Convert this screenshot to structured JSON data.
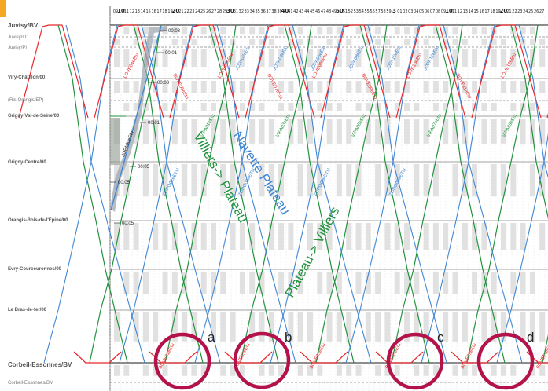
{
  "stations": [
    {
      "name": "Juvisy/BV",
      "kind": "major"
    },
    {
      "name": "Juvisy/LO",
      "kind": "minor"
    },
    {
      "name": "Juvisy/PI",
      "kind": "minor"
    },
    {
      "name": "Viry-Châtillon/00",
      "kind": "normal"
    },
    {
      "name": "(Ris-Orangis/EP)",
      "kind": "minor"
    },
    {
      "name": "Grigny-Val-de-Seine/00",
      "kind": "normal"
    },
    {
      "name": "Grigny-Centre/00",
      "kind": "normal"
    },
    {
      "name": "Orangis-Bois-de-l'Épine/00",
      "kind": "normal"
    },
    {
      "name": "Evry-Courcouronnes/00",
      "kind": "normal"
    },
    {
      "name": "Le Bras-de-fer/00",
      "kind": "normal"
    },
    {
      "name": "Corbeil-Essonnes/BV",
      "kind": "major"
    },
    {
      "name": "Corbeil-Essonnes/BM",
      "kind": "minor"
    }
  ],
  "ticks": [
    "09",
    "10",
    "11",
    "12",
    "13",
    "14",
    "15",
    "16",
    "17",
    "18",
    "19",
    "20",
    "21",
    "22",
    "23",
    "24",
    "25",
    "26",
    "27",
    "28",
    "29",
    "30",
    "31",
    "32",
    "33",
    "34",
    "35",
    "36",
    "37",
    "38",
    "39",
    "40",
    "41",
    "42",
    "43",
    "44",
    "45",
    "46",
    "47",
    "48",
    "49",
    "50",
    "51",
    "52",
    "53",
    "54",
    "55",
    "56",
    "57",
    "58",
    "59",
    "3",
    "01",
    "02",
    "03",
    "04",
    "05",
    "06",
    "07",
    "08",
    "09",
    "10",
    "11",
    "12",
    "13",
    "14",
    "15",
    "16",
    "17",
    "18",
    "19",
    "20",
    "21",
    "22",
    "23",
    "24",
    "25",
    "26",
    "27",
    "28"
  ],
  "annotations": {
    "villiers_plateau": "Villiers-> Plateau",
    "navette_plateau": "Navette Plateau",
    "plateau_villiers": "Plateau-> Villiers"
  },
  "markers": [
    "a",
    "b",
    "c",
    "d"
  ],
  "time_labels": [
    "00:03",
    "00:01",
    "00:08",
    "00:01",
    "00:05",
    "00:05",
    "00:05"
  ],
  "train_labels": {
    "red": [
      "LOVE04eEtu",
      "BOVE05eEtu",
      "LOVE06eEtu",
      "BOVE07eEtu",
      "LOVE08eEtu",
      "BOVE09eEtu",
      "LOVE10eEtu",
      "BOVE11eEtu",
      "LOVE12eEtu"
    ],
    "green": [
      "VIPA01eEtu",
      "VIPA03eEtu",
      "VIPA05eEtu",
      "VIPA07eEtu",
      "VIPA09eEtu"
    ],
    "blue": [
      "JOPA02eEtu",
      "JOPA04eEtu",
      "JOPA06eEtu",
      "JOPA08eEtu",
      "JOPA10eEtu",
      "JOPA12eEtu"
    ],
    "plateau": [
      "ZOPO01eETU",
      "ZOPO03eETU",
      "ZOPO05eETU",
      "ZOPO07eETU"
    ],
    "bottom": [
      "BOVE01eEtu",
      "BOVE03eEtu",
      "BOVE05eEtu",
      "BOVE07eEtu",
      "BOVE09eEtu",
      "BOVE11eEtu"
    ],
    "left": "JOPA00eEtu"
  },
  "colors": {
    "red": "#e8262b",
    "green": "#22923d",
    "blue": "#3f86d4",
    "grey": "#c8c8c8",
    "circle": "#b3124a",
    "orange": "#f5a623"
  }
}
